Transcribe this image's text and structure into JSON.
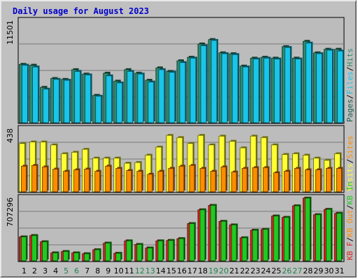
{
  "title": "Daily usage for August 2023",
  "colors": {
    "frame": "#c0c0c0",
    "panel": "#b8b8b8",
    "pages": "#1a5e4e",
    "files": "#19c5e8",
    "hits": "#2e8b6e",
    "visits": "#ffff33",
    "sites": "#ff8c00",
    "kb_in": "#2e8b57",
    "kb_out": "#dd2222",
    "kb_f": "#22c822",
    "weekend_day": "#20844f",
    "weekday": "#000000",
    "title": "#0000c8"
  },
  "chart_data": [
    {
      "type": "bar",
      "title": "Daily usage for August 2023",
      "categories": [
        "1",
        "2",
        "3",
        "4",
        "5",
        "6",
        "7",
        "8",
        "9",
        "10",
        "11",
        "12",
        "13",
        "14",
        "15",
        "16",
        "17",
        "18",
        "19",
        "20",
        "21",
        "22",
        "23",
        "24",
        "25",
        "26",
        "27",
        "28",
        "29",
        "30",
        "31"
      ],
      "weekend_days": [
        "5",
        "6",
        "12",
        "13",
        "19",
        "20",
        "26",
        "27"
      ],
      "max_label": "11501",
      "ylim": [
        0,
        11501
      ],
      "axis_label_parts": [
        "Pages",
        "/",
        "Files",
        "/",
        "Hits"
      ],
      "series": [
        {
          "name": "Hits",
          "values": [
            6600,
            6500,
            4000,
            5000,
            4900,
            6000,
            5500,
            3100,
            5600,
            4700,
            6000,
            5600,
            4800,
            6200,
            5800,
            7000,
            7400,
            8900,
            9400,
            7900,
            7800,
            6400,
            7300,
            7400,
            7300,
            8600,
            7300,
            9200,
            7900,
            8300,
            8300
          ]
        },
        {
          "name": "Files",
          "values": [
            6500,
            6300,
            3800,
            4900,
            4800,
            5800,
            5400,
            3000,
            5300,
            4500,
            5800,
            5500,
            4600,
            6000,
            5700,
            6800,
            7300,
            8700,
            9300,
            7800,
            7700,
            6300,
            7200,
            7300,
            7200,
            8500,
            7200,
            9000,
            7800,
            8200,
            8100
          ]
        },
        {
          "name": "Pages",
          "values": [
            6600,
            6500,
            4000,
            5000,
            4900,
            6000,
            5500,
            3100,
            5600,
            4700,
            6000,
            5600,
            4800,
            6200,
            5800,
            7000,
            7400,
            8900,
            9400,
            7900,
            7800,
            6400,
            7300,
            7400,
            7300,
            8600,
            7300,
            9200,
            7900,
            8300,
            8300
          ]
        }
      ]
    },
    {
      "type": "bar",
      "max_label": "438",
      "ylim": [
        0,
        438
      ],
      "axis_label_parts": [
        "Visits",
        "/",
        "Sites"
      ],
      "series": [
        {
          "name": "Visits",
          "values": [
            330,
            340,
            340,
            320,
            260,
            270,
            290,
            230,
            230,
            230,
            195,
            200,
            250,
            305,
            385,
            370,
            330,
            385,
            320,
            380,
            345,
            300,
            380,
            370,
            320,
            255,
            260,
            250,
            230,
            215,
            260
          ]
        },
        {
          "name": "Sites",
          "values": [
            175,
            180,
            170,
            155,
            140,
            150,
            155,
            140,
            175,
            160,
            145,
            140,
            120,
            140,
            160,
            175,
            180,
            160,
            140,
            170,
            135,
            160,
            165,
            165,
            130,
            140,
            160,
            150,
            150,
            160,
            160
          ]
        }
      ]
    },
    {
      "type": "bar",
      "max_label": "707296",
      "ylim": [
        0,
        707296
      ],
      "axis_label_parts": [
        "KB F",
        "/",
        "KB Out",
        "/",
        "KB In"
      ],
      "series": [
        {
          "name": "KB F",
          "values": [
            270000,
            285000,
            215000,
            90000,
            105000,
            90000,
            80000,
            125000,
            200000,
            85000,
            225000,
            185000,
            145000,
            225000,
            230000,
            250000,
            420000,
            575000,
            625000,
            445000,
            405000,
            260000,
            345000,
            355000,
            505000,
            490000,
            620000,
            707296,
            520000,
            580000,
            535000
          ]
        },
        {
          "name": "KB Out",
          "values": [
            270000,
            285000,
            215000,
            90000,
            105000,
            90000,
            80000,
            125000,
            200000,
            85000,
            225000,
            185000,
            145000,
            225000,
            230000,
            250000,
            420000,
            575000,
            625000,
            445000,
            405000,
            260000,
            345000,
            355000,
            505000,
            490000,
            620000,
            707296,
            520000,
            580000,
            535000
          ]
        },
        {
          "name": "KB In",
          "values": [
            0,
            0,
            0,
            0,
            0,
            0,
            0,
            0,
            0,
            0,
            0,
            0,
            0,
            0,
            0,
            0,
            0,
            0,
            0,
            0,
            0,
            0,
            0,
            0,
            0,
            0,
            0,
            0,
            0,
            0,
            0
          ]
        }
      ]
    }
  ]
}
